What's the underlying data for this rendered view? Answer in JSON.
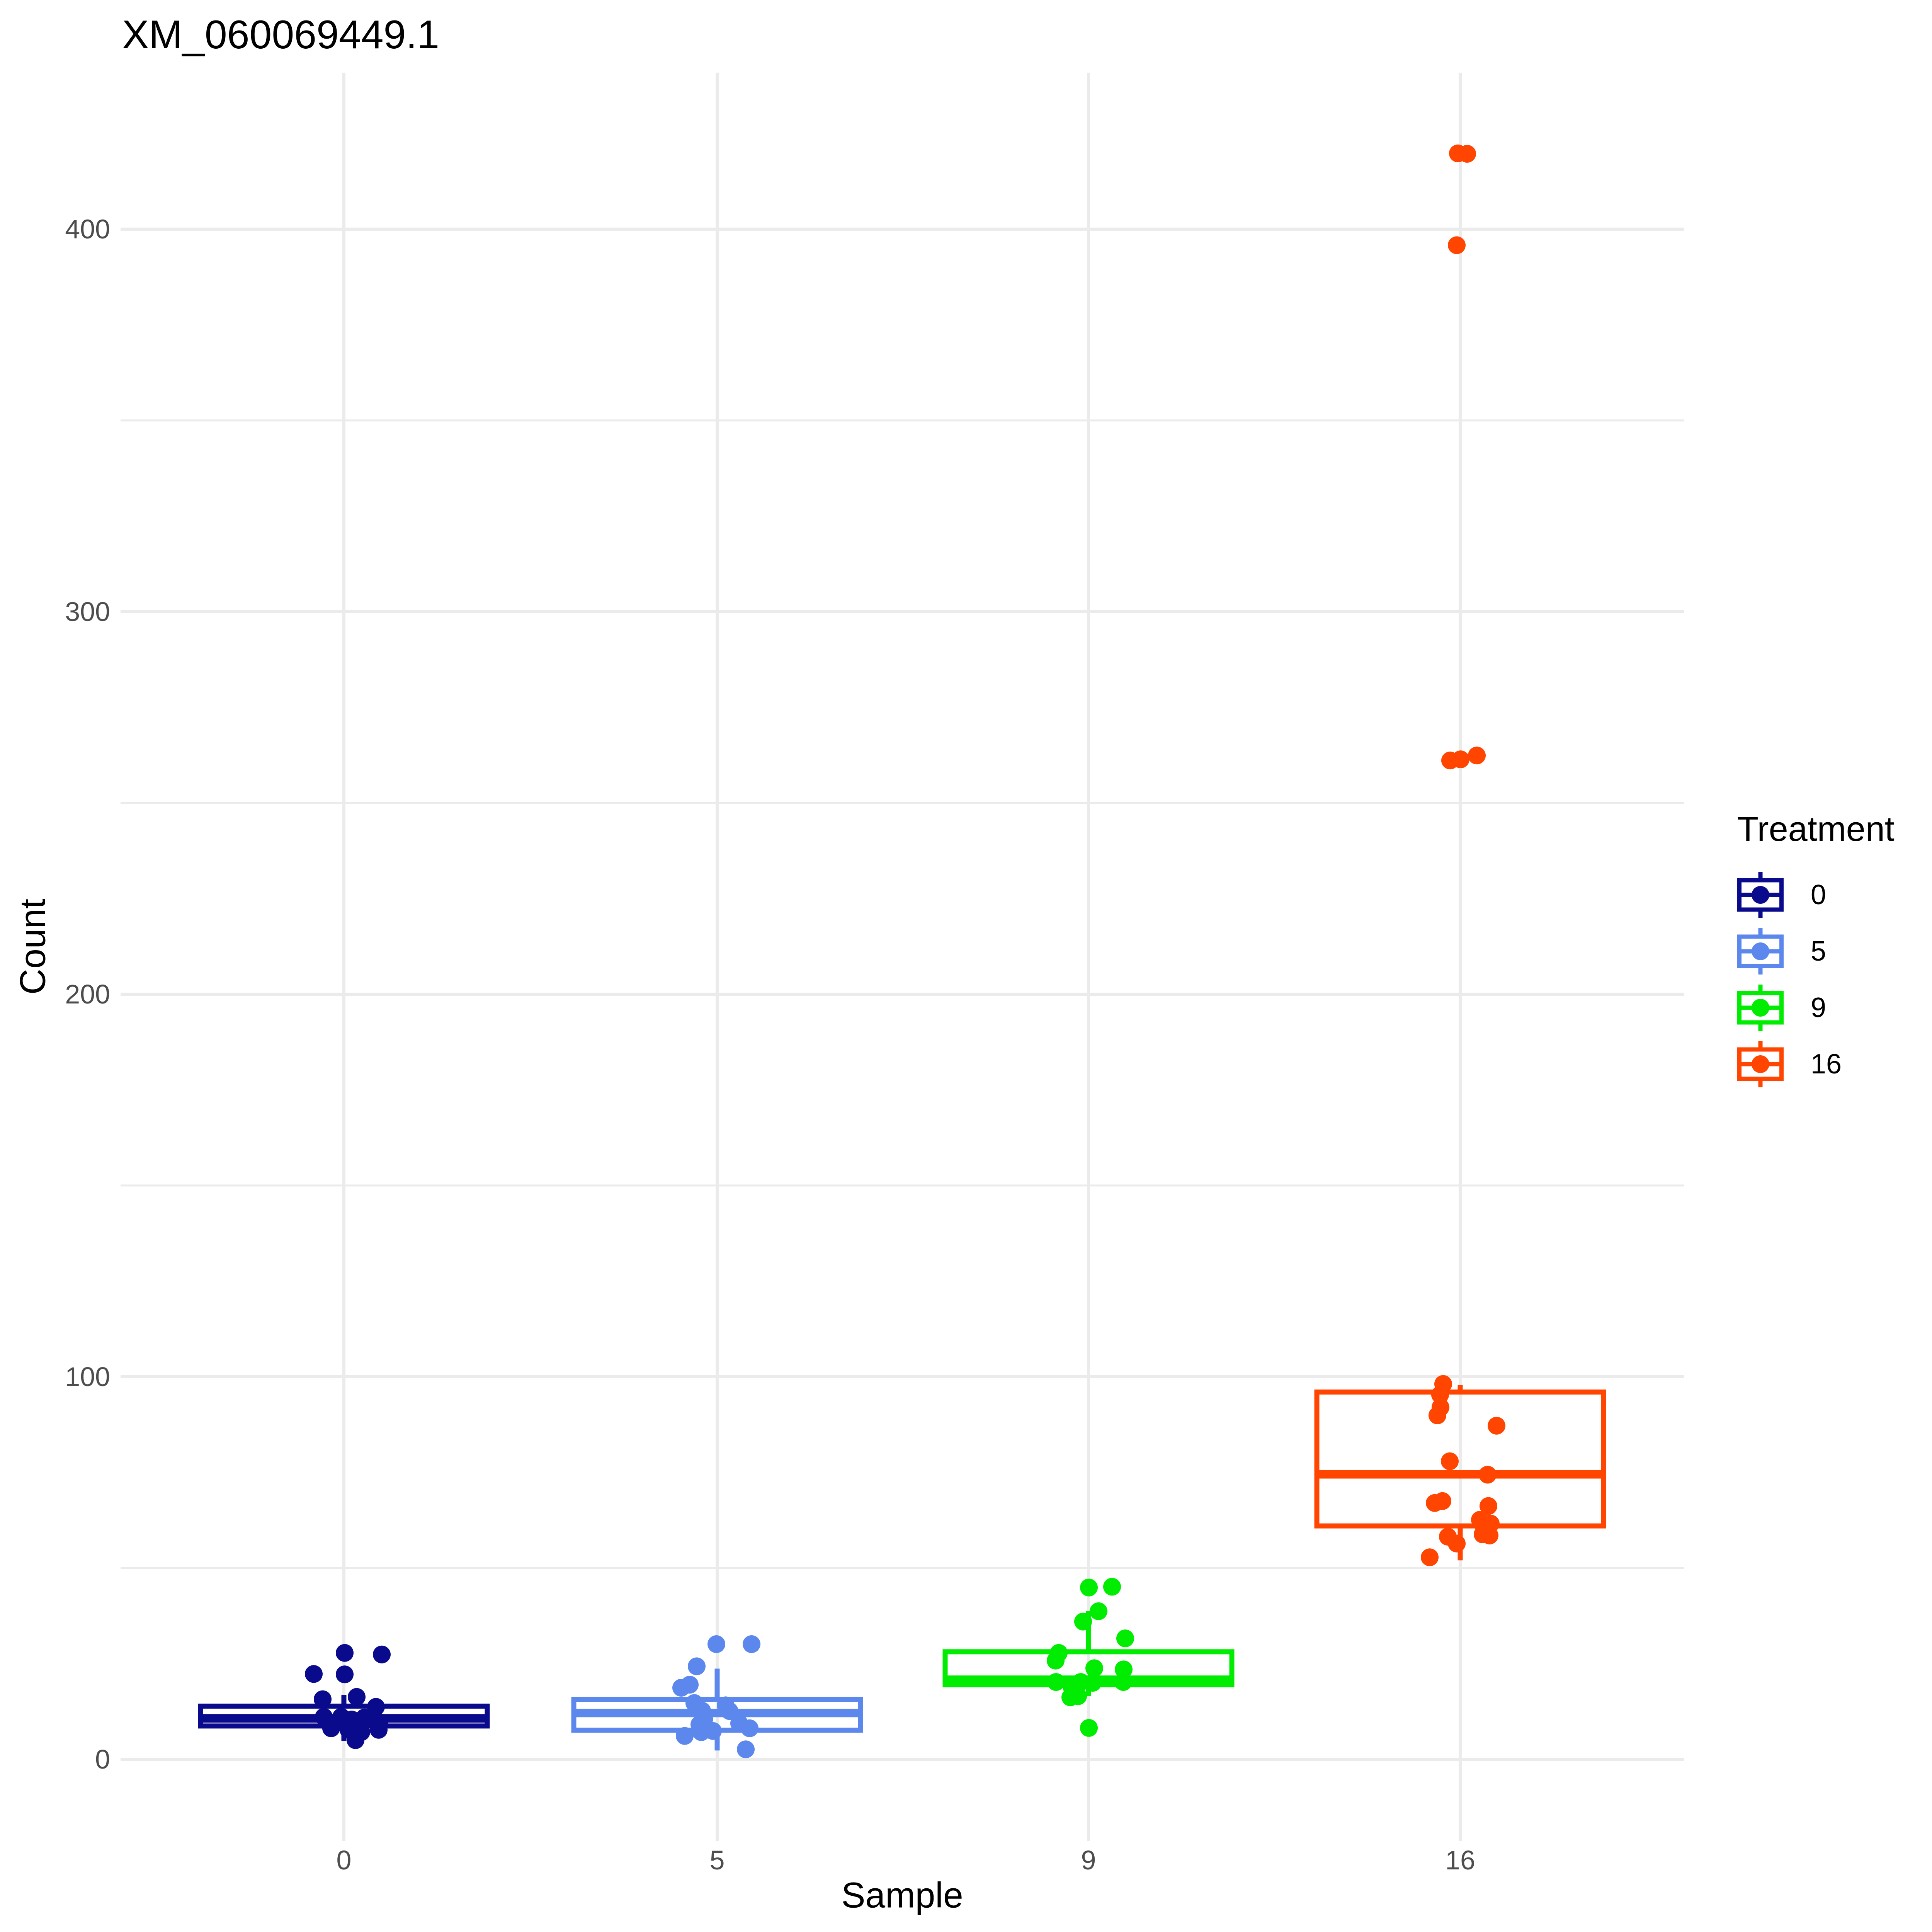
{
  "title": "XM_060069449.1",
  "axes": {
    "x": {
      "title": "Sample",
      "tick_labels": [
        "0",
        "5",
        "9",
        "16"
      ]
    },
    "y": {
      "title": "Count",
      "tick_labels": [
        "0",
        "100",
        "200",
        "300",
        "400"
      ]
    }
  },
  "legend": {
    "title": "Treatment",
    "items": [
      {
        "label": "0",
        "color": "#0A0A8C"
      },
      {
        "label": "5",
        "color": "#5C87ED"
      },
      {
        "label": "9",
        "color": "#00EC00"
      },
      {
        "label": "16",
        "color": "#FF4500"
      }
    ]
  },
  "colors": {
    "background": "#FFFFFF",
    "gridline": "#EBEBEB",
    "tick_text": "#4D4D4D",
    "title_text": "#000000"
  },
  "chart_data": {
    "type": "boxplot",
    "overlay": "jittered points",
    "title": "XM_060069449.1",
    "xlabel": "Sample",
    "ylabel": "Count",
    "categories": [
      "0",
      "5",
      "9",
      "16"
    ],
    "y_major_ticks": [
      0,
      100,
      200,
      300,
      400
    ],
    "y_minor_ticks": [
      50,
      150,
      250,
      350
    ],
    "ylim": [
      -21,
      441
    ],
    "grid": "major and minor horizontal light-gray lines, vertical major at each category, white background, no axis lines (theme_minimal)",
    "legend_position": "right",
    "legend_title": "Treatment",
    "groups": [
      {
        "sample": "0",
        "treatment": "0",
        "color": "#0A0A8C",
        "box": {
          "q1": 8.7,
          "median": 10.7,
          "q3": 13.9,
          "whisker_low": 4.8,
          "whisker_high": 16.8
        },
        "points": [
          [
            2,
            27.8
          ],
          [
            98,
            27.4
          ],
          [
            -78,
            22.3
          ],
          [
            2,
            22.2
          ],
          [
            -55,
            15.7
          ],
          [
            33,
            16.3
          ],
          [
            83,
            13.7
          ],
          [
            -52,
            11.1
          ],
          [
            -7,
            11.1
          ],
          [
            20,
            10.4
          ],
          [
            53,
            10.9
          ],
          [
            92,
            9.7
          ],
          [
            -33,
            8.1
          ],
          [
            12,
            7.7
          ],
          [
            45,
            7.1
          ],
          [
            90,
            7.7
          ],
          [
            30,
            5.0
          ]
        ]
      },
      {
        "sample": "5",
        "treatment": "5",
        "color": "#5C87ED",
        "box": {
          "q1": 7.6,
          "median": 12.1,
          "q3": 15.7,
          "whisker_low": 2.3,
          "whisker_high": 23.7
        },
        "points": [
          [
            -2,
            30.1
          ],
          [
            89,
            30.1
          ],
          [
            -53,
            24.3
          ],
          [
            -71,
            19.5
          ],
          [
            -93,
            18.7
          ],
          [
            -59,
            14.7
          ],
          [
            -39,
            12.7
          ],
          [
            -33,
            10.7
          ],
          [
            22,
            14.1
          ],
          [
            32,
            12.6
          ],
          [
            -46,
            9.1
          ],
          [
            -11,
            7.4
          ],
          [
            -41,
            7.1
          ],
          [
            -84,
            6.1
          ],
          [
            57,
            9.4
          ],
          [
            84,
            8.1
          ],
          [
            74,
            2.6
          ]
        ]
      },
      {
        "sample": "9",
        "treatment": "9",
        "color": "#00EC00",
        "box": {
          "q1": 19.5,
          "median": 20.8,
          "q3": 28.1,
          "whisker_low": 16.5,
          "whisker_high": 38.7
        },
        "points": [
          [
            1,
            44.9
          ],
          [
            61,
            45.1
          ],
          [
            26,
            38.7
          ],
          [
            -14,
            36.0
          ],
          [
            95,
            31.6
          ],
          [
            -77,
            27.8
          ],
          [
            -85,
            25.8
          ],
          [
            15,
            23.8
          ],
          [
            91,
            23.5
          ],
          [
            -84,
            20.2
          ],
          [
            -44,
            19.0
          ],
          [
            -20,
            20.2
          ],
          [
            11,
            20.0
          ],
          [
            90,
            20.2
          ],
          [
            -47,
            16.2
          ],
          [
            -27,
            16.5
          ],
          [
            1,
            8.2
          ]
        ]
      },
      {
        "sample": "16",
        "treatment": "16",
        "color": "#FF4500",
        "box": {
          "q1": 61.0,
          "median": 74.5,
          "q3": 96.0,
          "whisker_low": 52.0,
          "whisker_high": 97.8
        },
        "points": [
          [
            -44,
            98.1
          ],
          [
            -52,
            95.3
          ],
          [
            -51,
            92.0
          ],
          [
            -59,
            89.9
          ],
          [
            94,
            87.2
          ],
          [
            -27,
            77.9
          ],
          [
            71,
            74.4
          ],
          [
            -66,
            67.0
          ],
          [
            -46,
            67.5
          ],
          [
            73,
            66.2
          ],
          [
            51,
            62.6
          ],
          [
            59,
            61.4
          ],
          [
            79,
            61.6
          ],
          [
            -32,
            58.2
          ],
          [
            76,
            58.5
          ],
          [
            58,
            58.8
          ],
          [
            -9,
            56.4
          ],
          [
            -79,
            52.8
          ],
          [
            -6,
            419.8
          ],
          [
            18,
            419.7
          ],
          [
            -9,
            395.8
          ],
          [
            -26,
            261.1
          ],
          [
            1,
            261.4
          ],
          [
            43,
            262.4
          ]
        ]
      }
    ]
  }
}
